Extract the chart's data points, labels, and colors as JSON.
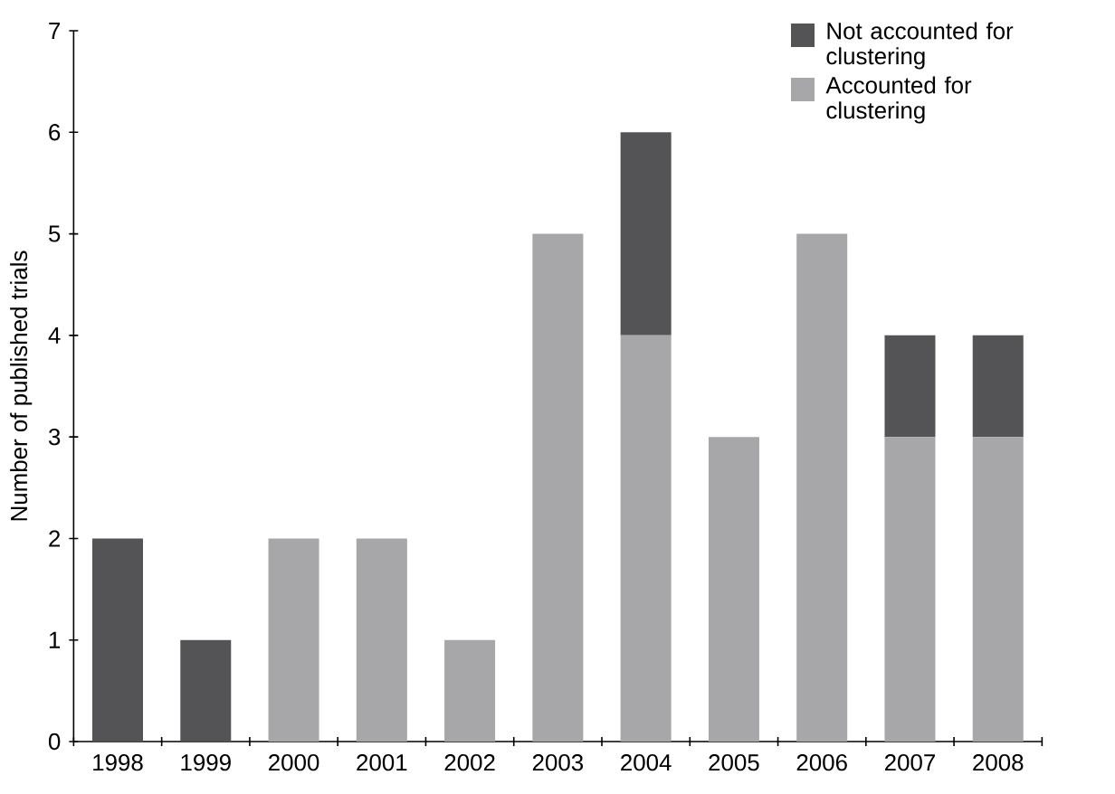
{
  "chart_data": {
    "type": "bar",
    "stacked": true,
    "ylabel": "Number of published trials",
    "categories": [
      "1998",
      "1999",
      "2000",
      "2001",
      "2002",
      "2003",
      "2004",
      "2005",
      "2006",
      "2007",
      "2008"
    ],
    "series": [
      {
        "name": "Accounted for clustering",
        "color": "#a7a7a9",
        "values": [
          0,
          0,
          2,
          2,
          1,
          5,
          4,
          3,
          5,
          3,
          3
        ]
      },
      {
        "name": "Not accounted for clustering",
        "color": "#545456",
        "values": [
          2,
          1,
          0,
          0,
          0,
          0,
          2,
          0,
          0,
          1,
          1
        ]
      }
    ],
    "ylim": [
      0,
      7
    ],
    "yticks": [
      0,
      1,
      2,
      3,
      4,
      5,
      6,
      7
    ],
    "legend": "top right",
    "grid": false
  }
}
